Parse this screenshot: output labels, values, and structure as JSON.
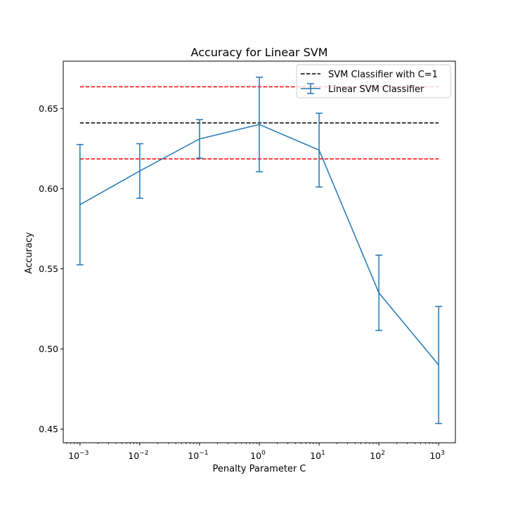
{
  "chart_data": {
    "type": "line",
    "title": "Accuracy for Linear SVM",
    "xlabel": "Penalty Parameter C",
    "ylabel": "Accuracy",
    "xscale": "log",
    "xlim": [
      0.000525,
      1905
    ],
    "ylim": [
      0.4415,
      0.6795
    ],
    "x_ticks": [
      0.001,
      0.01,
      0.1,
      1,
      10,
      100,
      1000
    ],
    "x_tick_labels": [
      {
        "base": "10",
        "exp": "−3"
      },
      {
        "base": "10",
        "exp": "−2"
      },
      {
        "base": "10",
        "exp": "−1"
      },
      {
        "base": "10",
        "exp": "0"
      },
      {
        "base": "10",
        "exp": "1"
      },
      {
        "base": "10",
        "exp": "2"
      },
      {
        "base": "10",
        "exp": "3"
      }
    ],
    "y_ticks": [
      0.45,
      0.5,
      0.55,
      0.6,
      0.65
    ],
    "y_tick_labels": [
      "0.45",
      "0.50",
      "0.55",
      "0.60",
      "0.65"
    ],
    "grid": false,
    "legend_position": "top-right",
    "series": [
      {
        "name": "Linear SVM Classifier",
        "kind": "errorbar",
        "color": "#1f77b4",
        "x": [
          0.001,
          0.01,
          0.1,
          1,
          10,
          100,
          1000
        ],
        "y": [
          0.59,
          0.611,
          0.631,
          0.64,
          0.624,
          0.535,
          0.49
        ],
        "yerr": [
          0.0375,
          0.017,
          0.012,
          0.0295,
          0.023,
          0.0235,
          0.0365
        ]
      },
      {
        "name": "SVM Classifier with C=1",
        "kind": "hline",
        "color": "#000000",
        "style": "dashed",
        "y": 0.641,
        "x_range": [
          0.001,
          1000
        ]
      },
      {
        "kind": "hline",
        "color": "#ff0000",
        "style": "dashed",
        "y": 0.6635,
        "x_range": [
          0.001,
          1000
        ]
      },
      {
        "kind": "hline",
        "color": "#ff0000",
        "style": "dashed",
        "y": 0.6185,
        "x_range": [
          0.001,
          1000
        ]
      }
    ],
    "legend": [
      {
        "label": "SVM Classifier with C=1",
        "marker": "dashed-line",
        "color": "#000000"
      },
      {
        "label": "Linear SVM Classifier",
        "marker": "errorbar",
        "color": "#1f77b4"
      }
    ]
  }
}
